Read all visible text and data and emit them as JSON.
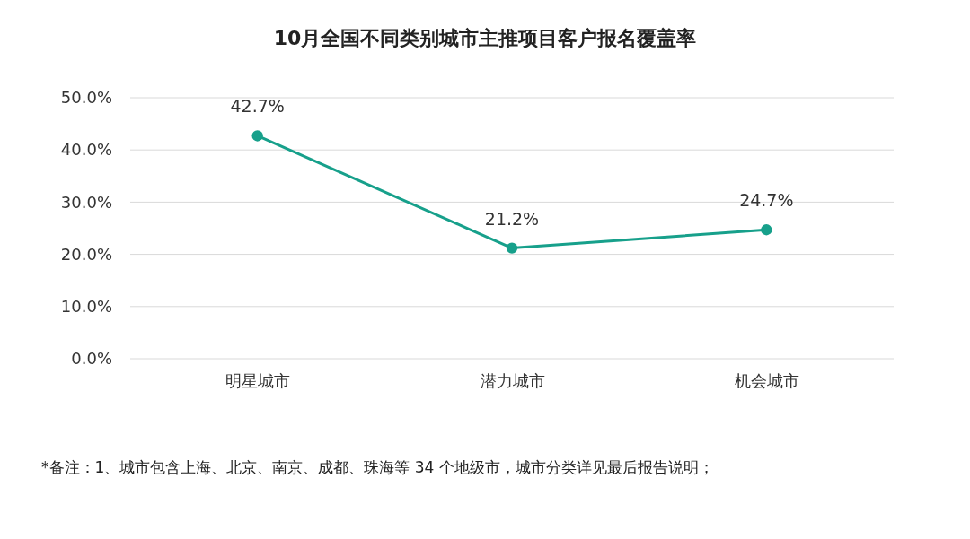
{
  "chart_data": {
    "type": "line",
    "title": "10月全国不同类别城市主推项目客户报名覆盖率",
    "categories": [
      "明星城市",
      "潜力城市",
      "机会城市"
    ],
    "series": [
      {
        "color": "#17a08b",
        "values": [
          42.7,
          21.2,
          24.7
        ],
        "value_labels": [
          "42.7%",
          "21.2%",
          "24.7%"
        ]
      }
    ],
    "ylim": [
      0,
      50
    ],
    "yticks": [
      {
        "value": 0,
        "label": "0.0%"
      },
      {
        "value": 10,
        "label": "10.0%"
      },
      {
        "value": 20,
        "label": "20.0%"
      },
      {
        "value": 30,
        "label": "30.0%"
      },
      {
        "value": 40,
        "label": "40.0%"
      },
      {
        "value": 50,
        "label": "50.0%"
      }
    ],
    "grid": "y",
    "marker": "circle",
    "line_style": "solid",
    "annotations": [
      "*备注：1、城市包含上海、北京、南京、成都、珠海等 34 个地级市，城市分类详见最后报告说明；"
    ]
  }
}
